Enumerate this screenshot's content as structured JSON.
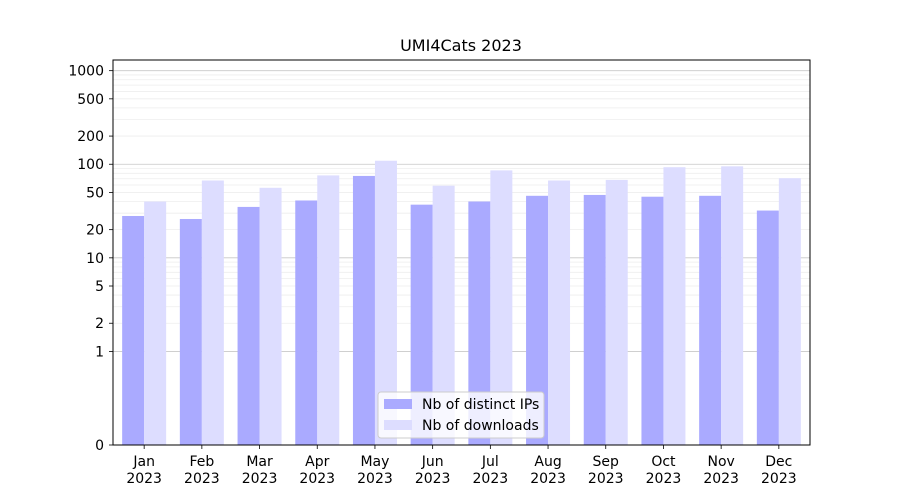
{
  "chart_data": {
    "type": "bar",
    "title": "UMI4Cats 2023",
    "xlabel": "",
    "ylabel": "",
    "yscale": "symlog",
    "ylim": [
      0,
      1300
    ],
    "yticks": [
      0,
      1,
      2,
      5,
      10,
      20,
      50,
      100,
      200,
      500,
      1000
    ],
    "ytick_labels": [
      "0",
      "1",
      "2",
      "5",
      "10",
      "20",
      "50",
      "100",
      "200",
      "500",
      "1000"
    ],
    "categories": [
      "Jan\n2023",
      "Feb\n2023",
      "Mar\n2023",
      "Apr\n2023",
      "May\n2023",
      "Jun\n2023",
      "Jul\n2023",
      "Aug\n2023",
      "Sep\n2023",
      "Oct\n2023",
      "Nov\n2023",
      "Dec\n2023"
    ],
    "series": [
      {
        "name": "Nb of distinct IPs",
        "color": "#aaaaff",
        "values": [
          28,
          26,
          35,
          41,
          75,
          37,
          40,
          46,
          47,
          45,
          46,
          32
        ]
      },
      {
        "name": "Nb of downloads",
        "color": "#ddddff",
        "values": [
          40,
          67,
          56,
          76,
          109,
          59,
          86,
          67,
          68,
          93,
          95,
          71
        ]
      }
    ],
    "grid": true,
    "legend_position": "bottom-center"
  }
}
